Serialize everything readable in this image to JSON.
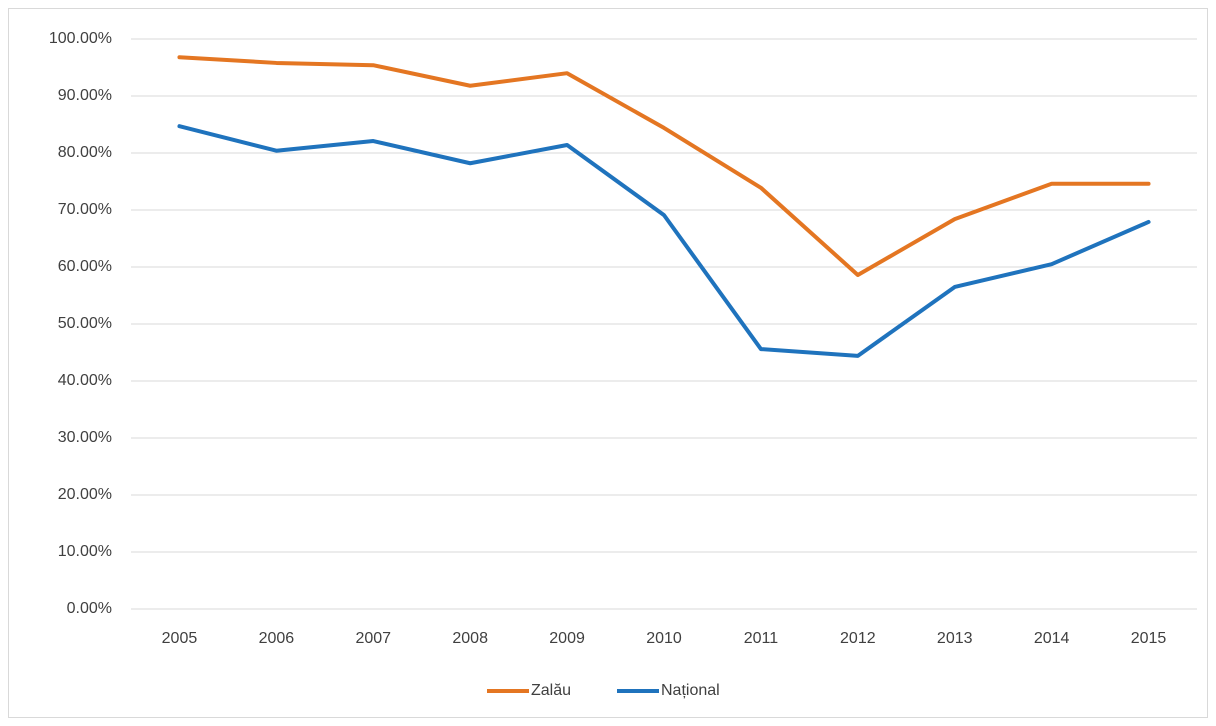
{
  "chart_data": {
    "type": "line",
    "categories": [
      "2005",
      "2006",
      "2007",
      "2008",
      "2009",
      "2010",
      "2011",
      "2012",
      "2013",
      "2014",
      "2015"
    ],
    "series": [
      {
        "name": "Zalău",
        "color": "#e47622",
        "values": [
          96.8,
          95.8,
          95.4,
          91.8,
          94.0,
          84.4,
          73.9,
          58.6,
          68.4,
          74.6,
          74.6
        ]
      },
      {
        "name": "Național",
        "color": "#1f73bd",
        "values": [
          84.7,
          80.4,
          82.1,
          78.2,
          81.4,
          69.1,
          45.6,
          44.4,
          56.5,
          60.5,
          67.9
        ]
      }
    ],
    "ylim": [
      0,
      100
    ],
    "yticks": [
      {
        "value": 0,
        "label": "0.00%"
      },
      {
        "value": 10,
        "label": "10.00%"
      },
      {
        "value": 20,
        "label": "20.00%"
      },
      {
        "value": 30,
        "label": "30.00%"
      },
      {
        "value": 40,
        "label": "40.00%"
      },
      {
        "value": 50,
        "label": "50.00%"
      },
      {
        "value": 60,
        "label": "60.00%"
      },
      {
        "value": 70,
        "label": "70.00%"
      },
      {
        "value": 80,
        "label": "80.00%"
      },
      {
        "value": 90,
        "label": "90.00%"
      },
      {
        "value": 100,
        "label": "100.00%"
      }
    ],
    "grid": true,
    "legend": "bottom"
  }
}
